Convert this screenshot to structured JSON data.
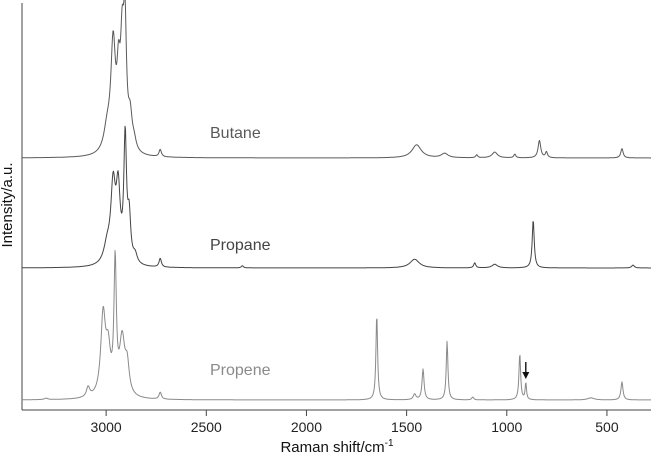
{
  "chart_data": {
    "type": "line",
    "xlabel": "Raman shift/cm",
    "xlabel_superscript": "-1",
    "ylabel": "Intensity/a.u.",
    "xlim": [
      3420,
      280
    ],
    "x_reversed": true,
    "xticks": [
      3000,
      2500,
      2000,
      1500,
      1000,
      500
    ],
    "xtick_labels": [
      "3000",
      "2500",
      "2000",
      "1500",
      "1000",
      "500"
    ],
    "grid": false,
    "legend": "inline labels",
    "annotation": {
      "type": "arrow",
      "series": "Propene",
      "x": 905
    },
    "series": [
      {
        "name": "Butane",
        "color": "#5a5a5a",
        "peaks": [
          {
            "x": 2965,
            "y": 0.73,
            "w": 14
          },
          {
            "x": 2938,
            "y": 0.43,
            "w": 10
          },
          {
            "x": 2920,
            "y": 0.62,
            "w": 10
          },
          {
            "x": 2906,
            "y": 0.8,
            "w": 9
          },
          {
            "x": 2880,
            "y": 0.22,
            "w": 12
          },
          {
            "x": 2995,
            "y": 0.15,
            "w": 20
          },
          {
            "x": 2860,
            "y": 0.06,
            "w": 12
          },
          {
            "x": 2730,
            "y": 0.05,
            "w": 7
          },
          {
            "x": 1450,
            "y": 0.09,
            "w": 28
          },
          {
            "x": 1310,
            "y": 0.03,
            "w": 20
          },
          {
            "x": 1150,
            "y": 0.02,
            "w": 6
          },
          {
            "x": 1060,
            "y": 0.04,
            "w": 16
          },
          {
            "x": 960,
            "y": 0.025,
            "w": 6
          },
          {
            "x": 837,
            "y": 0.12,
            "w": 8
          },
          {
            "x": 802,
            "y": 0.04,
            "w": 6
          },
          {
            "x": 425,
            "y": 0.065,
            "w": 7
          }
        ]
      },
      {
        "name": "Propane",
        "color": "#444444",
        "peaks": [
          {
            "x": 2965,
            "y": 0.52,
            "w": 14
          },
          {
            "x": 2940,
            "y": 0.48,
            "w": 12
          },
          {
            "x": 2905,
            "y": 0.85,
            "w": 8
          },
          {
            "x": 2885,
            "y": 0.3,
            "w": 9
          },
          {
            "x": 2995,
            "y": 0.12,
            "w": 20
          },
          {
            "x": 2855,
            "y": 0.06,
            "w": 12
          },
          {
            "x": 2730,
            "y": 0.06,
            "w": 7
          },
          {
            "x": 2320,
            "y": 0.015,
            "w": 6
          },
          {
            "x": 1460,
            "y": 0.06,
            "w": 28
          },
          {
            "x": 1160,
            "y": 0.035,
            "w": 6
          },
          {
            "x": 1060,
            "y": 0.025,
            "w": 16
          },
          {
            "x": 868,
            "y": 0.33,
            "w": 6
          },
          {
            "x": 370,
            "y": 0.02,
            "w": 8
          }
        ]
      },
      {
        "name": "Propene",
        "color": "#8a8a8a",
        "peaks": [
          {
            "x": 3090,
            "y": 0.07,
            "w": 10
          },
          {
            "x": 3015,
            "y": 0.57,
            "w": 14
          },
          {
            "x": 2990,
            "y": 0.3,
            "w": 14
          },
          {
            "x": 2955,
            "y": 0.93,
            "w": 7
          },
          {
            "x": 2920,
            "y": 0.4,
            "w": 16
          },
          {
            "x": 2895,
            "y": 0.2,
            "w": 12
          },
          {
            "x": 2730,
            "y": 0.05,
            "w": 7
          },
          {
            "x": 3300,
            "y": 0.01,
            "w": 10
          },
          {
            "x": 1649,
            "y": 0.61,
            "w": 5
          },
          {
            "x": 1460,
            "y": 0.04,
            "w": 8
          },
          {
            "x": 1418,
            "y": 0.22,
            "w": 6
          },
          {
            "x": 1298,
            "y": 0.42,
            "w": 5
          },
          {
            "x": 1170,
            "y": 0.02,
            "w": 6
          },
          {
            "x": 935,
            "y": 0.33,
            "w": 5
          },
          {
            "x": 905,
            "y": 0.12,
            "w": 4
          },
          {
            "x": 580,
            "y": 0.015,
            "w": 20
          },
          {
            "x": 425,
            "y": 0.13,
            "w": 6
          }
        ]
      }
    ]
  }
}
